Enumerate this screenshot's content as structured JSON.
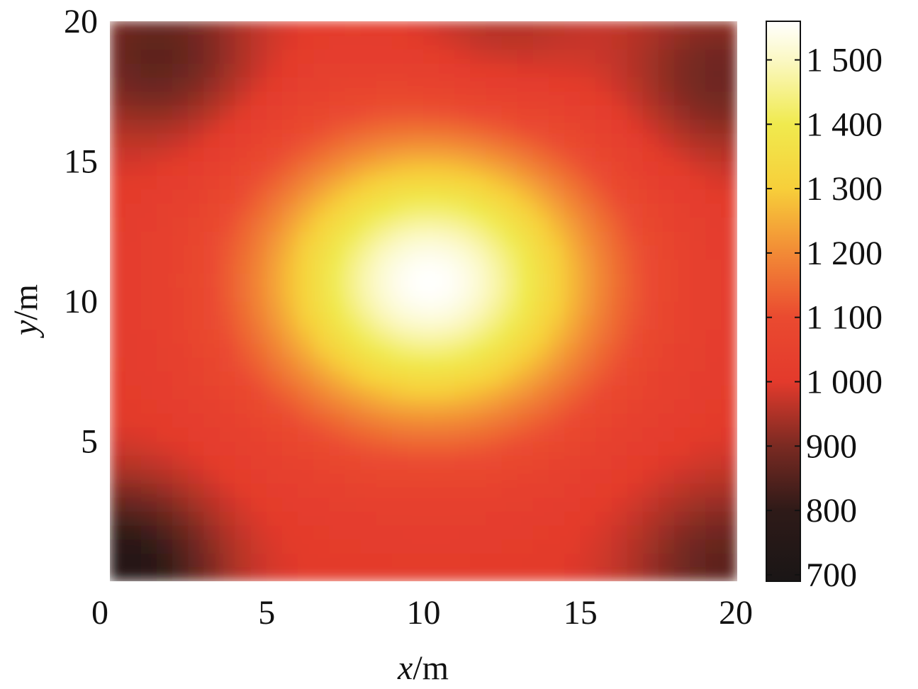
{
  "chart_data": {
    "type": "heatmap",
    "title": "",
    "xlabel_var": "x",
    "xlabel_unit": "/m",
    "ylabel_var": "y",
    "ylabel_unit": "/m",
    "xlim": [
      0,
      20
    ],
    "ylim": [
      0,
      20
    ],
    "x_ticks": [
      0,
      5,
      10,
      15,
      20
    ],
    "x_tick_labels": [
      "0",
      "5",
      "10",
      "15",
      "20"
    ],
    "y_ticks": [
      5,
      10,
      15,
      20
    ],
    "y_tick_labels": [
      "5",
      "10",
      "15",
      "20"
    ],
    "grid": false,
    "colormap": "hot",
    "colorbar": {
      "range": [
        690,
        1560
      ],
      "ticks": [
        700,
        800,
        900,
        1000,
        1100,
        1200,
        1300,
        1400,
        1500
      ],
      "tick_labels": [
        "700",
        "800",
        "900",
        "1 000",
        "1 100",
        "1 200",
        "1 300",
        "1 400",
        "1 500"
      ],
      "stops": [
        {
          "value": 690,
          "color": "#1a1616"
        },
        {
          "value": 800,
          "color": "#2e1a18"
        },
        {
          "value": 900,
          "color": "#7a2a22"
        },
        {
          "value": 1000,
          "color": "#e33a2c"
        },
        {
          "value": 1100,
          "color": "#ea4a30"
        },
        {
          "value": 1200,
          "color": "#f28a36"
        },
        {
          "value": 1300,
          "color": "#f7cf3a"
        },
        {
          "value": 1400,
          "color": "#f0ea4e"
        },
        {
          "value": 1500,
          "color": "#fbf8c4"
        },
        {
          "value": 1560,
          "color": "#ffffff"
        }
      ]
    },
    "field": {
      "description_model": "radial peak plus corner sources",
      "peak": {
        "x": 10.2,
        "y": 10.7,
        "value": 1560
      },
      "background_value": 1000,
      "dark_regions": [
        {
          "x": 0.3,
          "y": 0.3,
          "value": 750
        },
        {
          "x": 1.5,
          "y": 18.8,
          "value": 860
        },
        {
          "x": 19.5,
          "y": 18.0,
          "value": 880
        },
        {
          "x": 19.7,
          "y": 0.4,
          "value": 860
        },
        {
          "x": 12.5,
          "y": 19.8,
          "value": 940
        }
      ],
      "x_step": 0.5,
      "y_step": 0.5
    }
  }
}
